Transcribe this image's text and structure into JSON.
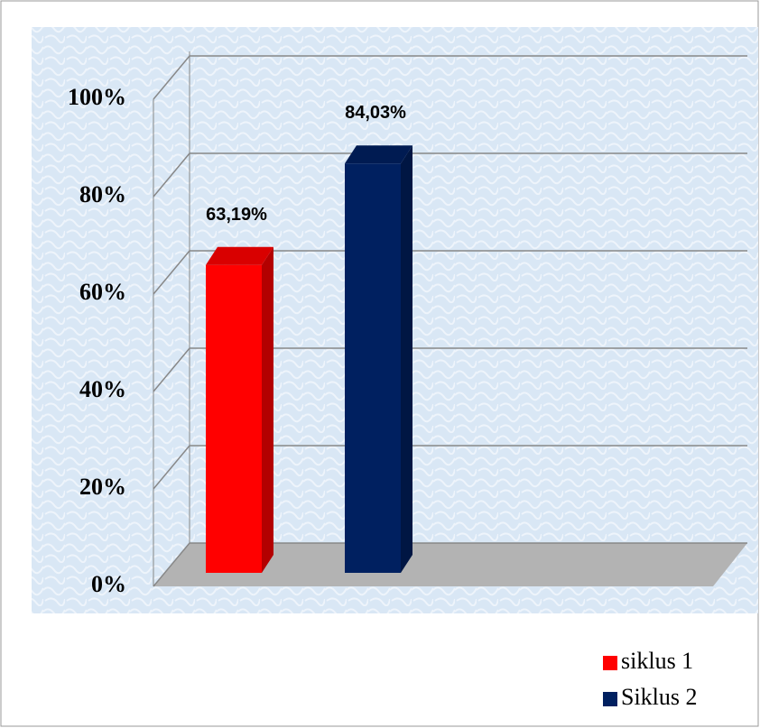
{
  "chart_data": {
    "type": "bar3d",
    "categories": [
      null
    ],
    "series": [
      {
        "name": "siklus 1",
        "color": "#ff0000",
        "values": [
          63.19
        ],
        "value_labels": [
          "63,19%"
        ]
      },
      {
        "name": "Siklus 2",
        "color": "#002060",
        "values": [
          84.03
        ],
        "value_labels": [
          "84,03%"
        ]
      }
    ],
    "ylim": [
      0,
      100
    ],
    "yticks": [
      {
        "value": 0,
        "label": "0%"
      },
      {
        "value": 20,
        "label": "20%"
      },
      {
        "value": 40,
        "label": "40%"
      },
      {
        "value": 60,
        "label": "60%"
      },
      {
        "value": 80,
        "label": "80%"
      },
      {
        "value": 100,
        "label": "100%"
      }
    ],
    "grid": true,
    "legend": "bottom-right"
  }
}
